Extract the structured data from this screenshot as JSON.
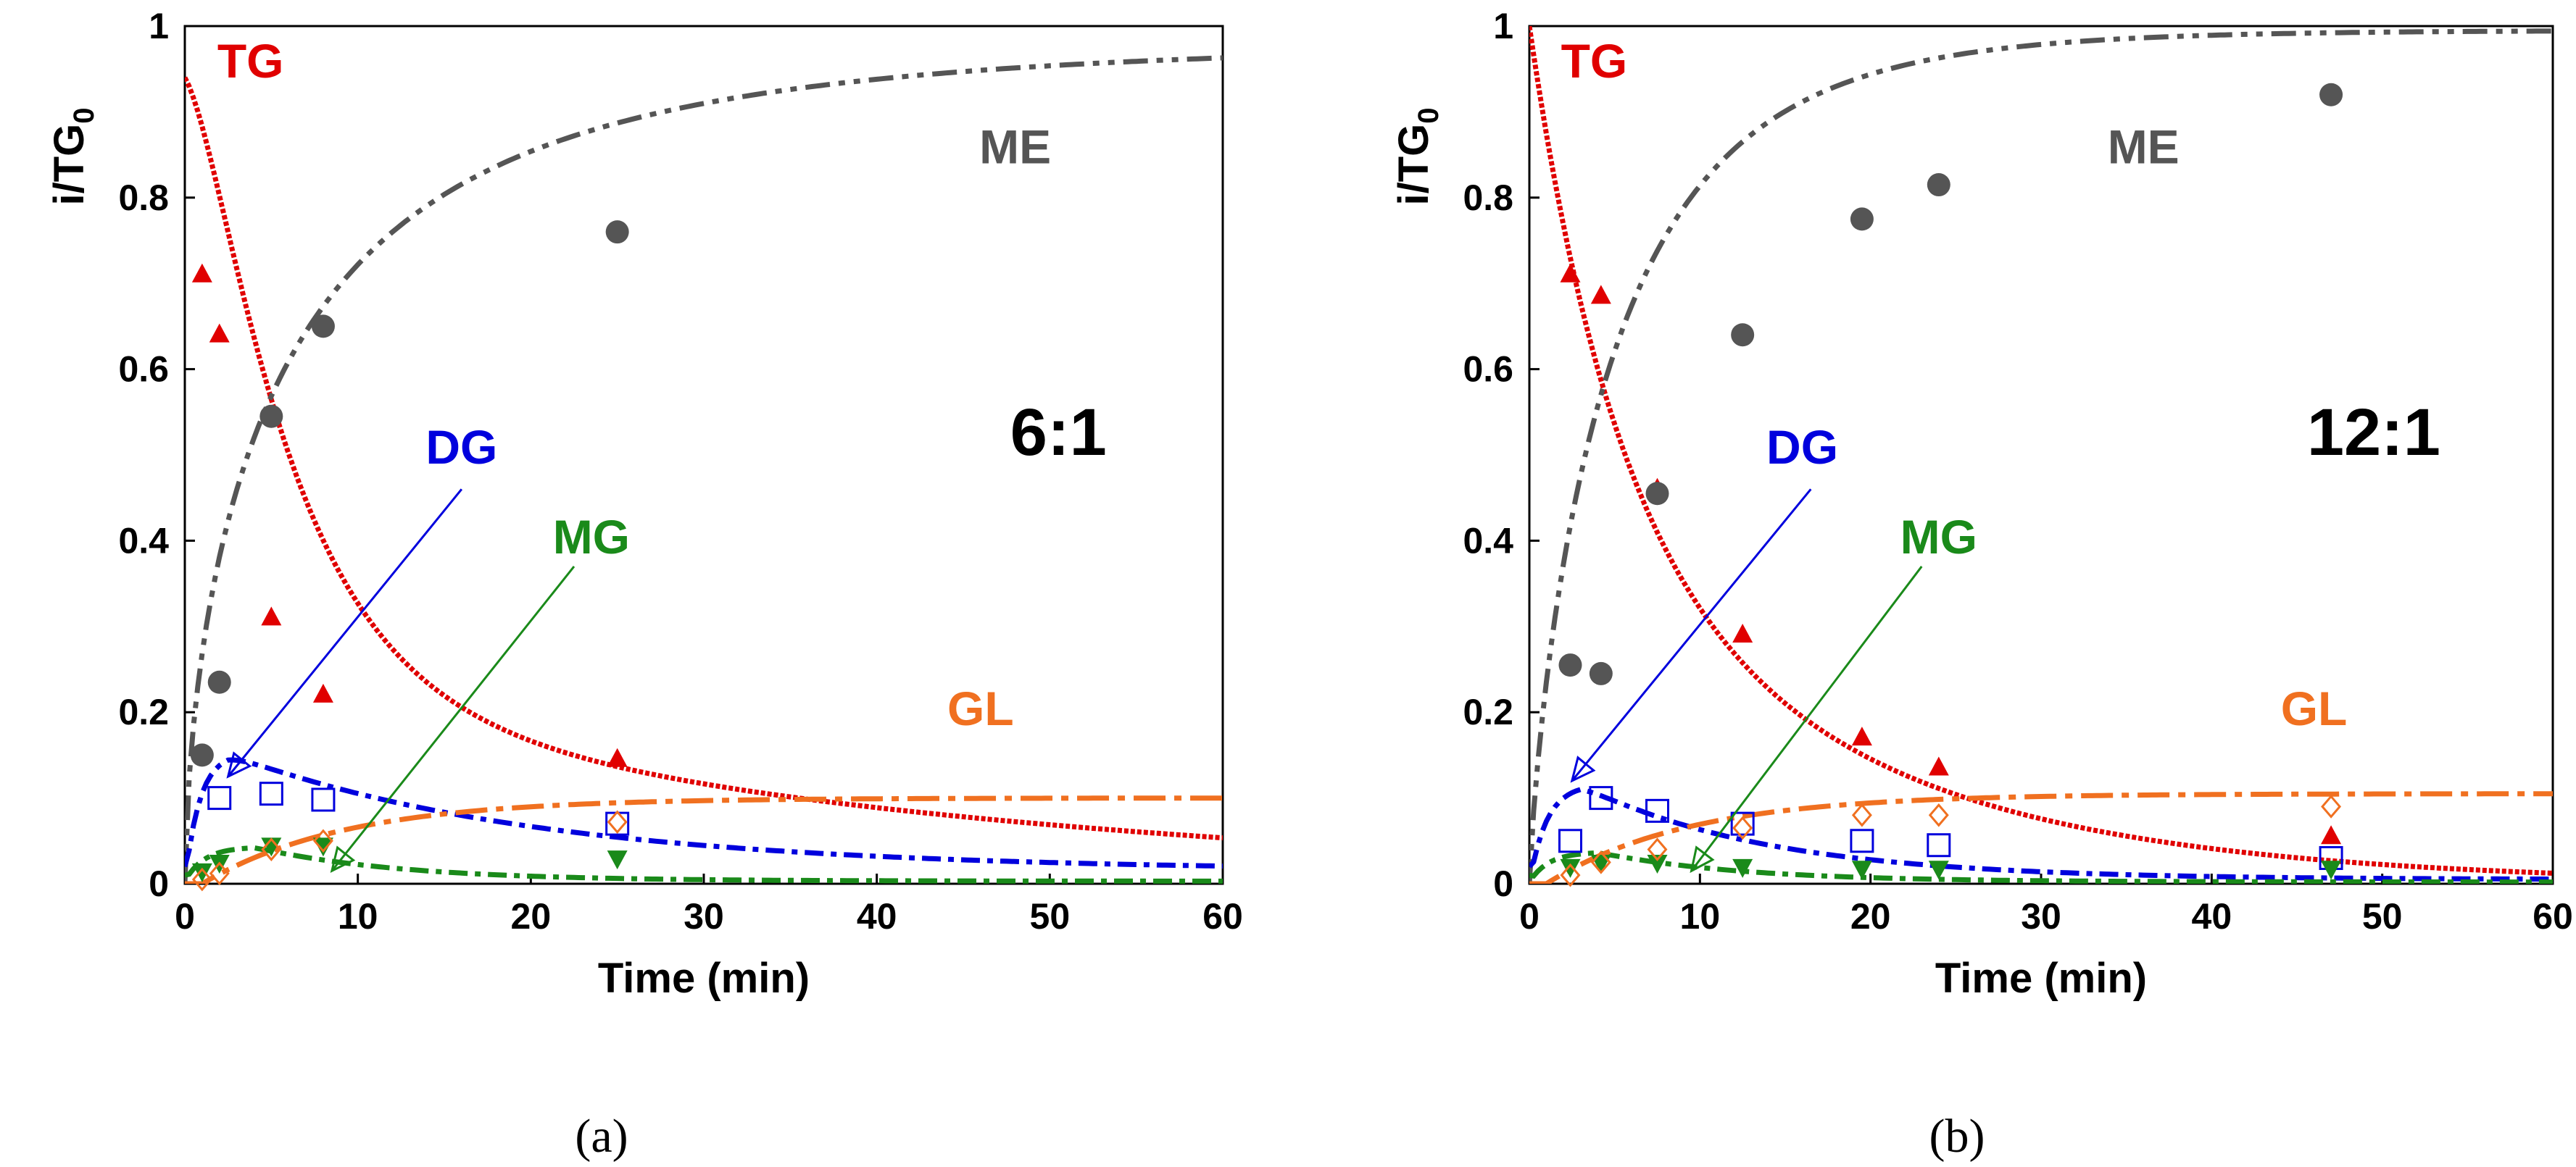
{
  "colors": {
    "TG": "#e00000",
    "ME": "#555555",
    "DG": "#0000dd",
    "MG": "#1a8a1a",
    "GL": "#f07020"
  },
  "chart_data": [
    {
      "type": "scatter",
      "caption": "(a)",
      "ratio_label": "6:1",
      "xlabel": "Time (min)",
      "ylabel_main": "i/TG",
      "ylabel_sub": "0",
      "xlim": [
        0,
        60
      ],
      "ylim": [
        0,
        1
      ],
      "xticks": [
        "0",
        "10",
        "20",
        "30",
        "40",
        "50",
        "60"
      ],
      "yticks": [
        "0",
        "0.2",
        "0.4",
        "0.6",
        "0.8",
        "1"
      ],
      "series": [
        {
          "name": "TG",
          "label": "TG",
          "marker": "triangle-up",
          "x": [
            1,
            2,
            5,
            8,
            25
          ],
          "y": [
            0.71,
            0.64,
            0.31,
            0.22,
            0.145
          ],
          "model": {
            "kind": "decay",
            "k": 0.14,
            "tail": 0.06
          }
        },
        {
          "name": "ME",
          "label": "ME",
          "marker": "circle",
          "x": [
            1,
            2,
            5,
            8,
            25
          ],
          "y": [
            0.15,
            0.235,
            0.545,
            0.65,
            0.76
          ],
          "model": {
            "kind": "rise",
            "k": 0.34,
            "tail": 0.06
          }
        },
        {
          "name": "DG",
          "label": "DG",
          "marker": "square-open",
          "x": [
            2,
            5,
            8,
            25
          ],
          "y": [
            0.1,
            0.105,
            0.098,
            0.07
          ],
          "model": {
            "kind": "peak",
            "k": 0.04,
            "tail": 0.015
          }
        },
        {
          "name": "MG",
          "label": "MG",
          "marker": "triangle-down",
          "x": [
            1,
            2,
            5,
            8,
            25
          ],
          "y": [
            0.015,
            0.025,
            0.045,
            0.045,
            0.03
          ],
          "model": {
            "kind": "peak",
            "k": 0.012,
            "tail": 0.003
          }
        },
        {
          "name": "GL",
          "label": "GL",
          "marker": "diamond-open",
          "x": [
            1,
            2,
            5,
            8,
            25
          ],
          "y": [
            0.005,
            0.012,
            0.04,
            0.05,
            0.072
          ],
          "model": {
            "kind": "grow",
            "k": 0.12,
            "tail": 0.1
          }
        }
      ],
      "labels": [
        {
          "series": "TG",
          "x": 3.8,
          "y": 0.94
        },
        {
          "series": "ME",
          "x": 48,
          "y": 0.84
        },
        {
          "series": "DG",
          "x": 16,
          "y": 0.49
        },
        {
          "series": "MG",
          "x": 23.5,
          "y": 0.385
        },
        {
          "series": "GL",
          "x": 46,
          "y": 0.185
        },
        {
          "series": "ratio",
          "x": 50.5,
          "y": 0.5
        }
      ],
      "arrows": [
        {
          "series": "DG",
          "from": [
            16,
            0.46
          ],
          "to": [
            2.5,
            0.125
          ]
        },
        {
          "series": "MG",
          "from": [
            22.5,
            0.37
          ],
          "to": [
            8.5,
            0.015
          ]
        }
      ]
    },
    {
      "type": "scatter",
      "caption": "(b)",
      "ratio_label": "12:1",
      "xlabel": "Time (min)",
      "ylabel_main": "i/TG",
      "ylabel_sub": "0",
      "xlim": [
        0,
        60
      ],
      "ylim": [
        0,
        1
      ],
      "xticks": [
        "0",
        "10",
        "20",
        "30",
        "40",
        "50",
        "60"
      ],
      "yticks": [
        "0",
        "0.2",
        "0.4",
        "0.6",
        "0.8",
        "1"
      ],
      "series": [
        {
          "name": "TG",
          "label": "TG",
          "marker": "triangle-up",
          "x": [
            2.4,
            4.2,
            7.5,
            12.5,
            19.5,
            24,
            47
          ],
          "y": [
            0.71,
            0.685,
            0.46,
            0.29,
            0.17,
            0.135,
            0.055
          ],
          "model": {
            "kind": "decay",
            "k": 0.095,
            "tail": 0.0
          }
        },
        {
          "name": "ME",
          "label": "ME",
          "marker": "circle",
          "x": [
            2.4,
            4.2,
            7.5,
            12.5,
            19.5,
            24,
            47
          ],
          "y": [
            0.255,
            0.245,
            0.455,
            0.64,
            0.775,
            0.815,
            0.92
          ],
          "model": {
            "kind": "rise",
            "k": 0.095,
            "tail": 0.0
          }
        },
        {
          "name": "DG",
          "label": "DG",
          "marker": "square-open",
          "x": [
            2.4,
            4.2,
            7.5,
            12.5,
            19.5,
            24,
            47
          ],
          "y": [
            0.05,
            0.1,
            0.085,
            0.07,
            0.05,
            0.045,
            0.03
          ],
          "model": {
            "kind": "peak",
            "k": 0.03,
            "tail": 0.005
          }
        },
        {
          "name": "MG",
          "label": "MG",
          "marker": "triangle-down",
          "x": [
            2.4,
            4.2,
            7.5,
            12.5,
            19.5,
            24,
            47
          ],
          "y": [
            0.02,
            0.025,
            0.025,
            0.02,
            0.018,
            0.018,
            0.018
          ],
          "model": {
            "kind": "peak",
            "k": 0.01,
            "tail": 0.002
          }
        },
        {
          "name": "GL",
          "label": "GL",
          "marker": "diamond-open",
          "x": [
            2.4,
            4.2,
            7.5,
            12.5,
            19.5,
            24,
            47
          ],
          "y": [
            0.01,
            0.025,
            0.04,
            0.065,
            0.08,
            0.08,
            0.09
          ],
          "model": {
            "kind": "grow",
            "k": 0.12,
            "tail": 0.105
          }
        }
      ],
      "labels": [
        {
          "series": "TG",
          "x": 3.8,
          "y": 0.94
        },
        {
          "series": "ME",
          "x": 36,
          "y": 0.84
        },
        {
          "series": "DG",
          "x": 16,
          "y": 0.49
        },
        {
          "series": "MG",
          "x": 24,
          "y": 0.385
        },
        {
          "series": "GL",
          "x": 46,
          "y": 0.185
        },
        {
          "series": "ratio",
          "x": 49.5,
          "y": 0.5
        }
      ],
      "arrows": [
        {
          "series": "DG",
          "from": [
            16.5,
            0.46
          ],
          "to": [
            2.5,
            0.12
          ]
        },
        {
          "series": "MG",
          "from": [
            23,
            0.37
          ],
          "to": [
            9.5,
            0.015
          ]
        }
      ]
    }
  ]
}
